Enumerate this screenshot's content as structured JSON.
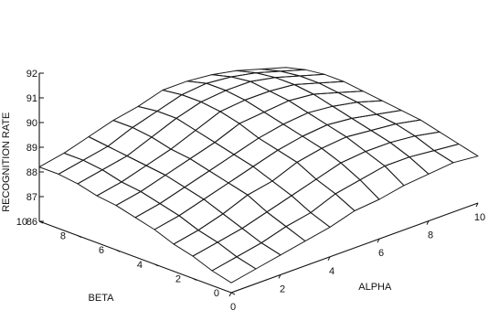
{
  "chart_data": {
    "type": "surface",
    "title": "",
    "xlabel": "ALPHA",
    "ylabel": "BETA",
    "zlabel": "RECOGNITION RATE",
    "x": [
      0,
      1,
      2,
      3,
      4,
      5,
      6,
      7,
      8,
      9,
      10
    ],
    "y": [
      0,
      1,
      2,
      3,
      4,
      5,
      6,
      7,
      8,
      9,
      10
    ],
    "zlim": [
      86,
      92
    ],
    "x_ticks": [
      "0",
      "2",
      "4",
      "6",
      "8",
      "10"
    ],
    "y_ticks": [
      "0",
      "2",
      "4",
      "6",
      "8",
      "10"
    ],
    "z_ticks": [
      "86",
      "87",
      "88",
      "89",
      "90",
      "91",
      "92"
    ],
    "z": [
      [
        86.4,
        86.6,
        86.8,
        87.0,
        87.2,
        87.5,
        87.6,
        87.8,
        87.9,
        88.0,
        87.9
      ],
      [
        86.6,
        86.8,
        87.0,
        87.3,
        87.5,
        87.9,
        88.1,
        88.3,
        88.3,
        88.2,
        88.1
      ],
      [
        86.9,
        87.1,
        87.3,
        87.6,
        87.9,
        88.2,
        88.5,
        88.6,
        88.6,
        88.5,
        88.3
      ],
      [
        87.1,
        87.3,
        87.6,
        88.0,
        88.2,
        88.6,
        88.8,
        88.9,
        88.8,
        88.7,
        88.5
      ],
      [
        87.4,
        87.6,
        87.9,
        88.2,
        88.5,
        88.8,
        89.0,
        89.1,
        89.0,
        88.8,
        88.6
      ],
      [
        87.6,
        87.8,
        88.1,
        88.4,
        88.7,
        89.0,
        89.2,
        89.3,
        89.2,
        89.0,
        88.7
      ],
      [
        87.8,
        88.0,
        88.3,
        88.6,
        88.9,
        89.3,
        89.4,
        89.5,
        89.4,
        89.1,
        88.8
      ],
      [
        87.9,
        88.1,
        88.4,
        88.7,
        89.1,
        89.5,
        89.6,
        89.6,
        89.5,
        89.2,
        88.9
      ],
      [
        88.1,
        88.3,
        88.5,
        88.9,
        89.3,
        89.6,
        89.7,
        89.7,
        89.5,
        89.2,
        88.9
      ],
      [
        88.2,
        88.4,
        88.6,
        89.0,
        89.3,
        89.6,
        89.7,
        89.6,
        89.4,
        89.1,
        88.8
      ],
      [
        88.2,
        88.4,
        88.7,
        89.0,
        89.2,
        89.5,
        89.5,
        89.4,
        89.2,
        88.9,
        88.6
      ]
    ],
    "grid": false,
    "legend": "none"
  }
}
